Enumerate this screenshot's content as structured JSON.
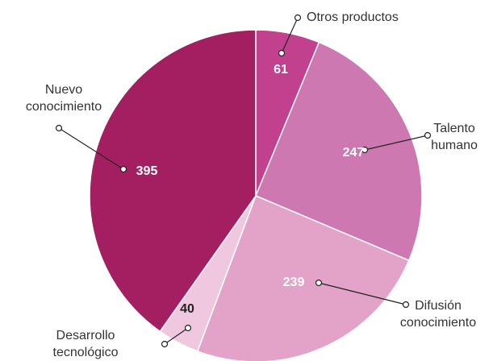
{
  "chart_data": {
    "type": "pie",
    "categories": [
      [
        "Otros productos"
      ],
      [
        "Talento",
        "humano"
      ],
      [
        "Difusión",
        "conocimiento"
      ],
      [
        "Desarrollo",
        "tecnológico"
      ],
      [
        "Nuevo",
        "conocimiento"
      ]
    ],
    "values": [
      61,
      247,
      239,
      40,
      395
    ],
    "colors": [
      "#c2418f",
      "#cd78b0",
      "#e3a3c8",
      "#efc8e0",
      "#a41f62"
    ]
  }
}
